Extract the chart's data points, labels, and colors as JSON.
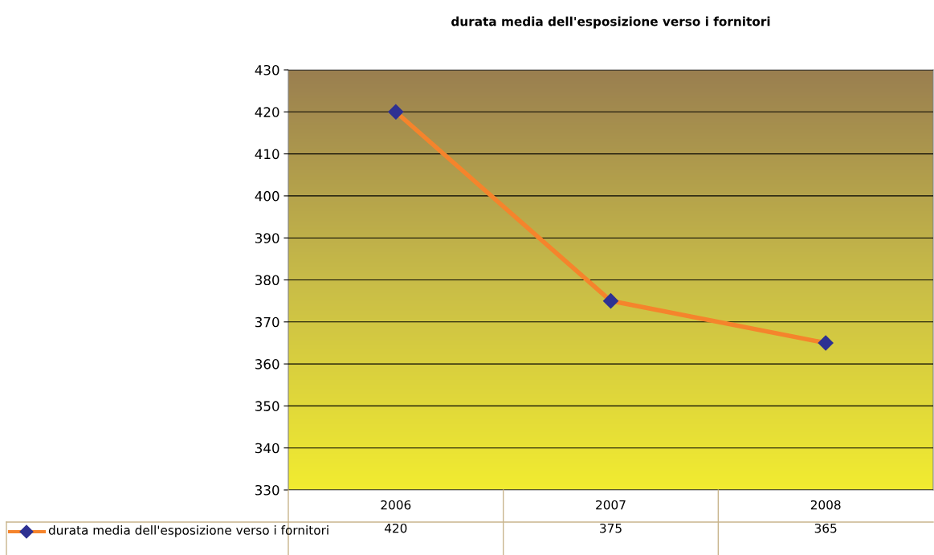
{
  "chart_data": {
    "type": "line",
    "title": "durata media dell'esposizione verso i fornitori",
    "categories": [
      "2006",
      "2007",
      "2008"
    ],
    "series": [
      {
        "name": "durata media dell'esposizione verso i fornitori",
        "color": "#f5842c",
        "values": [
          420,
          375,
          365
        ]
      }
    ],
    "ylim": [
      330,
      430
    ],
    "yticks": [
      330,
      340,
      350,
      360,
      370,
      380,
      390,
      400,
      410,
      420,
      430
    ],
    "grid": "y",
    "marker": "diamond",
    "line_style": "solid",
    "data_labels": true,
    "legend": "bottom"
  }
}
